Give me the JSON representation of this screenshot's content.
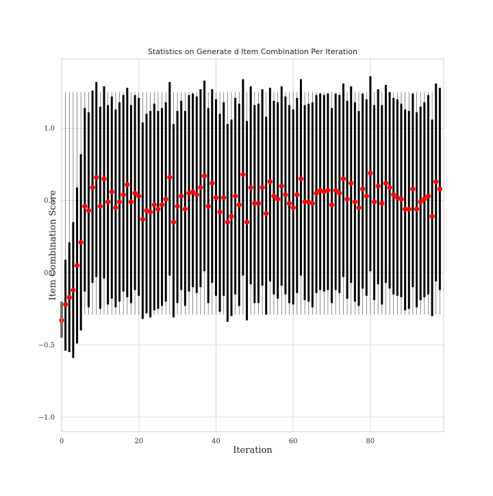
{
  "chart_data": {
    "type": "scatter",
    "title": "Statistics on Generate d Item Combination Per Iteration",
    "xlabel": "Iteration",
    "ylabel": "Item Combination Score",
    "xlim": [
      0,
      99
    ],
    "ylim": [
      -1.1,
      1.48
    ],
    "xticks": [
      0,
      20,
      40,
      60,
      80
    ],
    "yticks": [
      -1.0,
      -0.5,
      0.0,
      0.5,
      1.0
    ],
    "ytick_labels": [
      "−1.0",
      "−0.5",
      "0.0",
      "0.5",
      "1.0"
    ],
    "grid": true,
    "whisker_range": [
      -0.29,
      1.25
    ],
    "series": [
      {
        "kind": "mean",
        "color": "#ff0000",
        "x": [
          0,
          1,
          2,
          3,
          4,
          5,
          6,
          7,
          8,
          9,
          10,
          11,
          12,
          13,
          14,
          15,
          16,
          17,
          18,
          19,
          20,
          21,
          22,
          23,
          24,
          25,
          26,
          27,
          28,
          29,
          30,
          31,
          32,
          33,
          34,
          35,
          36,
          37,
          38,
          39,
          40,
          41,
          42,
          43,
          44,
          45,
          46,
          47,
          48,
          49,
          50,
          51,
          52,
          53,
          54,
          55,
          56,
          57,
          58,
          59,
          60,
          61,
          62,
          63,
          64,
          65,
          66,
          67,
          68,
          69,
          70,
          71,
          72,
          73,
          74,
          75,
          76,
          77,
          78,
          79,
          80,
          81,
          82,
          83,
          84,
          85,
          86,
          87,
          88,
          89,
          90,
          91,
          92,
          93,
          94,
          95,
          96,
          97,
          98
        ],
        "values": [
          -0.33,
          -0.22,
          -0.17,
          -0.12,
          0.05,
          0.21,
          0.46,
          0.43,
          0.59,
          0.66,
          0.46,
          0.65,
          0.49,
          0.56,
          0.45,
          0.49,
          0.54,
          0.61,
          0.49,
          0.55,
          0.53,
          0.37,
          0.43,
          0.42,
          0.47,
          0.44,
          0.47,
          0.51,
          0.66,
          0.35,
          0.46,
          0.53,
          0.44,
          0.55,
          0.56,
          0.54,
          0.59,
          0.67,
          0.46,
          0.62,
          0.52,
          0.42,
          0.52,
          0.35,
          0.39,
          0.53,
          0.47,
          0.68,
          0.35,
          0.59,
          0.48,
          0.48,
          0.59,
          0.41,
          0.63,
          0.53,
          0.51,
          0.6,
          0.54,
          0.48,
          0.45,
          0.54,
          0.65,
          0.49,
          0.49,
          0.48,
          0.55,
          0.57,
          0.56,
          0.57,
          0.47,
          0.57,
          0.55,
          0.65,
          0.51,
          0.62,
          0.49,
          0.45,
          0.58,
          0.53,
          0.69,
          0.49,
          0.6,
          0.48,
          0.62,
          0.59,
          0.54,
          0.52,
          0.51,
          0.44,
          0.44,
          0.58,
          0.44,
          0.49,
          0.51,
          0.53,
          0.39,
          0.63,
          0.58
        ]
      },
      {
        "kind": "range",
        "color": "#000000",
        "low": [
          -0.45,
          -0.54,
          -0.55,
          -0.59,
          -0.49,
          -0.4,
          -0.13,
          -0.24,
          -0.07,
          -0.03,
          -0.25,
          -0.04,
          -0.22,
          -0.18,
          -0.24,
          -0.2,
          -0.13,
          -0.17,
          -0.21,
          -0.12,
          -0.16,
          -0.32,
          -0.28,
          -0.31,
          -0.26,
          -0.25,
          -0.23,
          -0.2,
          -0.02,
          -0.31,
          -0.21,
          -0.12,
          -0.23,
          -0.13,
          -0.1,
          -0.14,
          -0.1,
          0.01,
          -0.21,
          -0.07,
          -0.16,
          -0.27,
          -0.16,
          -0.34,
          -0.3,
          -0.15,
          -0.23,
          -0.02,
          -0.33,
          -0.08,
          -0.21,
          -0.21,
          -0.09,
          -0.29,
          -0.06,
          -0.15,
          -0.18,
          -0.09,
          -0.15,
          -0.21,
          -0.22,
          -0.14,
          -0.02,
          -0.19,
          -0.2,
          -0.24,
          -0.14,
          -0.12,
          -0.13,
          -0.12,
          -0.21,
          -0.12,
          -0.14,
          -0.03,
          -0.18,
          -0.07,
          -0.2,
          -0.23,
          -0.11,
          -0.16,
          0.01,
          -0.19,
          -0.08,
          -0.22,
          -0.07,
          -0.11,
          -0.15,
          -0.16,
          -0.17,
          -0.26,
          -0.25,
          -0.1,
          -0.24,
          -0.19,
          -0.17,
          -0.15,
          -0.3,
          -0.06,
          -0.12
        ],
        "high": [
          -0.2,
          0.09,
          0.21,
          0.35,
          0.59,
          0.82,
          1.14,
          1.11,
          1.26,
          1.32,
          1.15,
          1.29,
          1.16,
          1.22,
          1.13,
          1.18,
          1.23,
          1.28,
          1.16,
          1.23,
          1.21,
          1.04,
          1.1,
          1.12,
          1.17,
          1.12,
          1.14,
          1.18,
          1.32,
          1.03,
          1.12,
          1.19,
          1.12,
          1.23,
          1.24,
          1.22,
          1.27,
          1.33,
          1.14,
          1.27,
          1.2,
          1.1,
          1.18,
          1.03,
          1.06,
          1.21,
          1.17,
          1.34,
          1.05,
          1.29,
          1.16,
          1.17,
          1.27,
          1.08,
          1.28,
          1.19,
          1.18,
          1.29,
          1.22,
          1.16,
          1.13,
          1.21,
          1.34,
          1.16,
          1.17,
          1.18,
          1.23,
          1.24,
          1.23,
          1.24,
          1.14,
          1.24,
          1.23,
          1.31,
          1.19,
          1.29,
          1.18,
          1.12,
          1.24,
          1.2,
          1.36,
          1.16,
          1.27,
          1.16,
          1.3,
          1.25,
          1.21,
          1.2,
          1.17,
          1.13,
          1.12,
          1.24,
          1.11,
          1.15,
          1.18,
          1.23,
          1.06,
          1.31,
          1.28
        ]
      }
    ]
  }
}
